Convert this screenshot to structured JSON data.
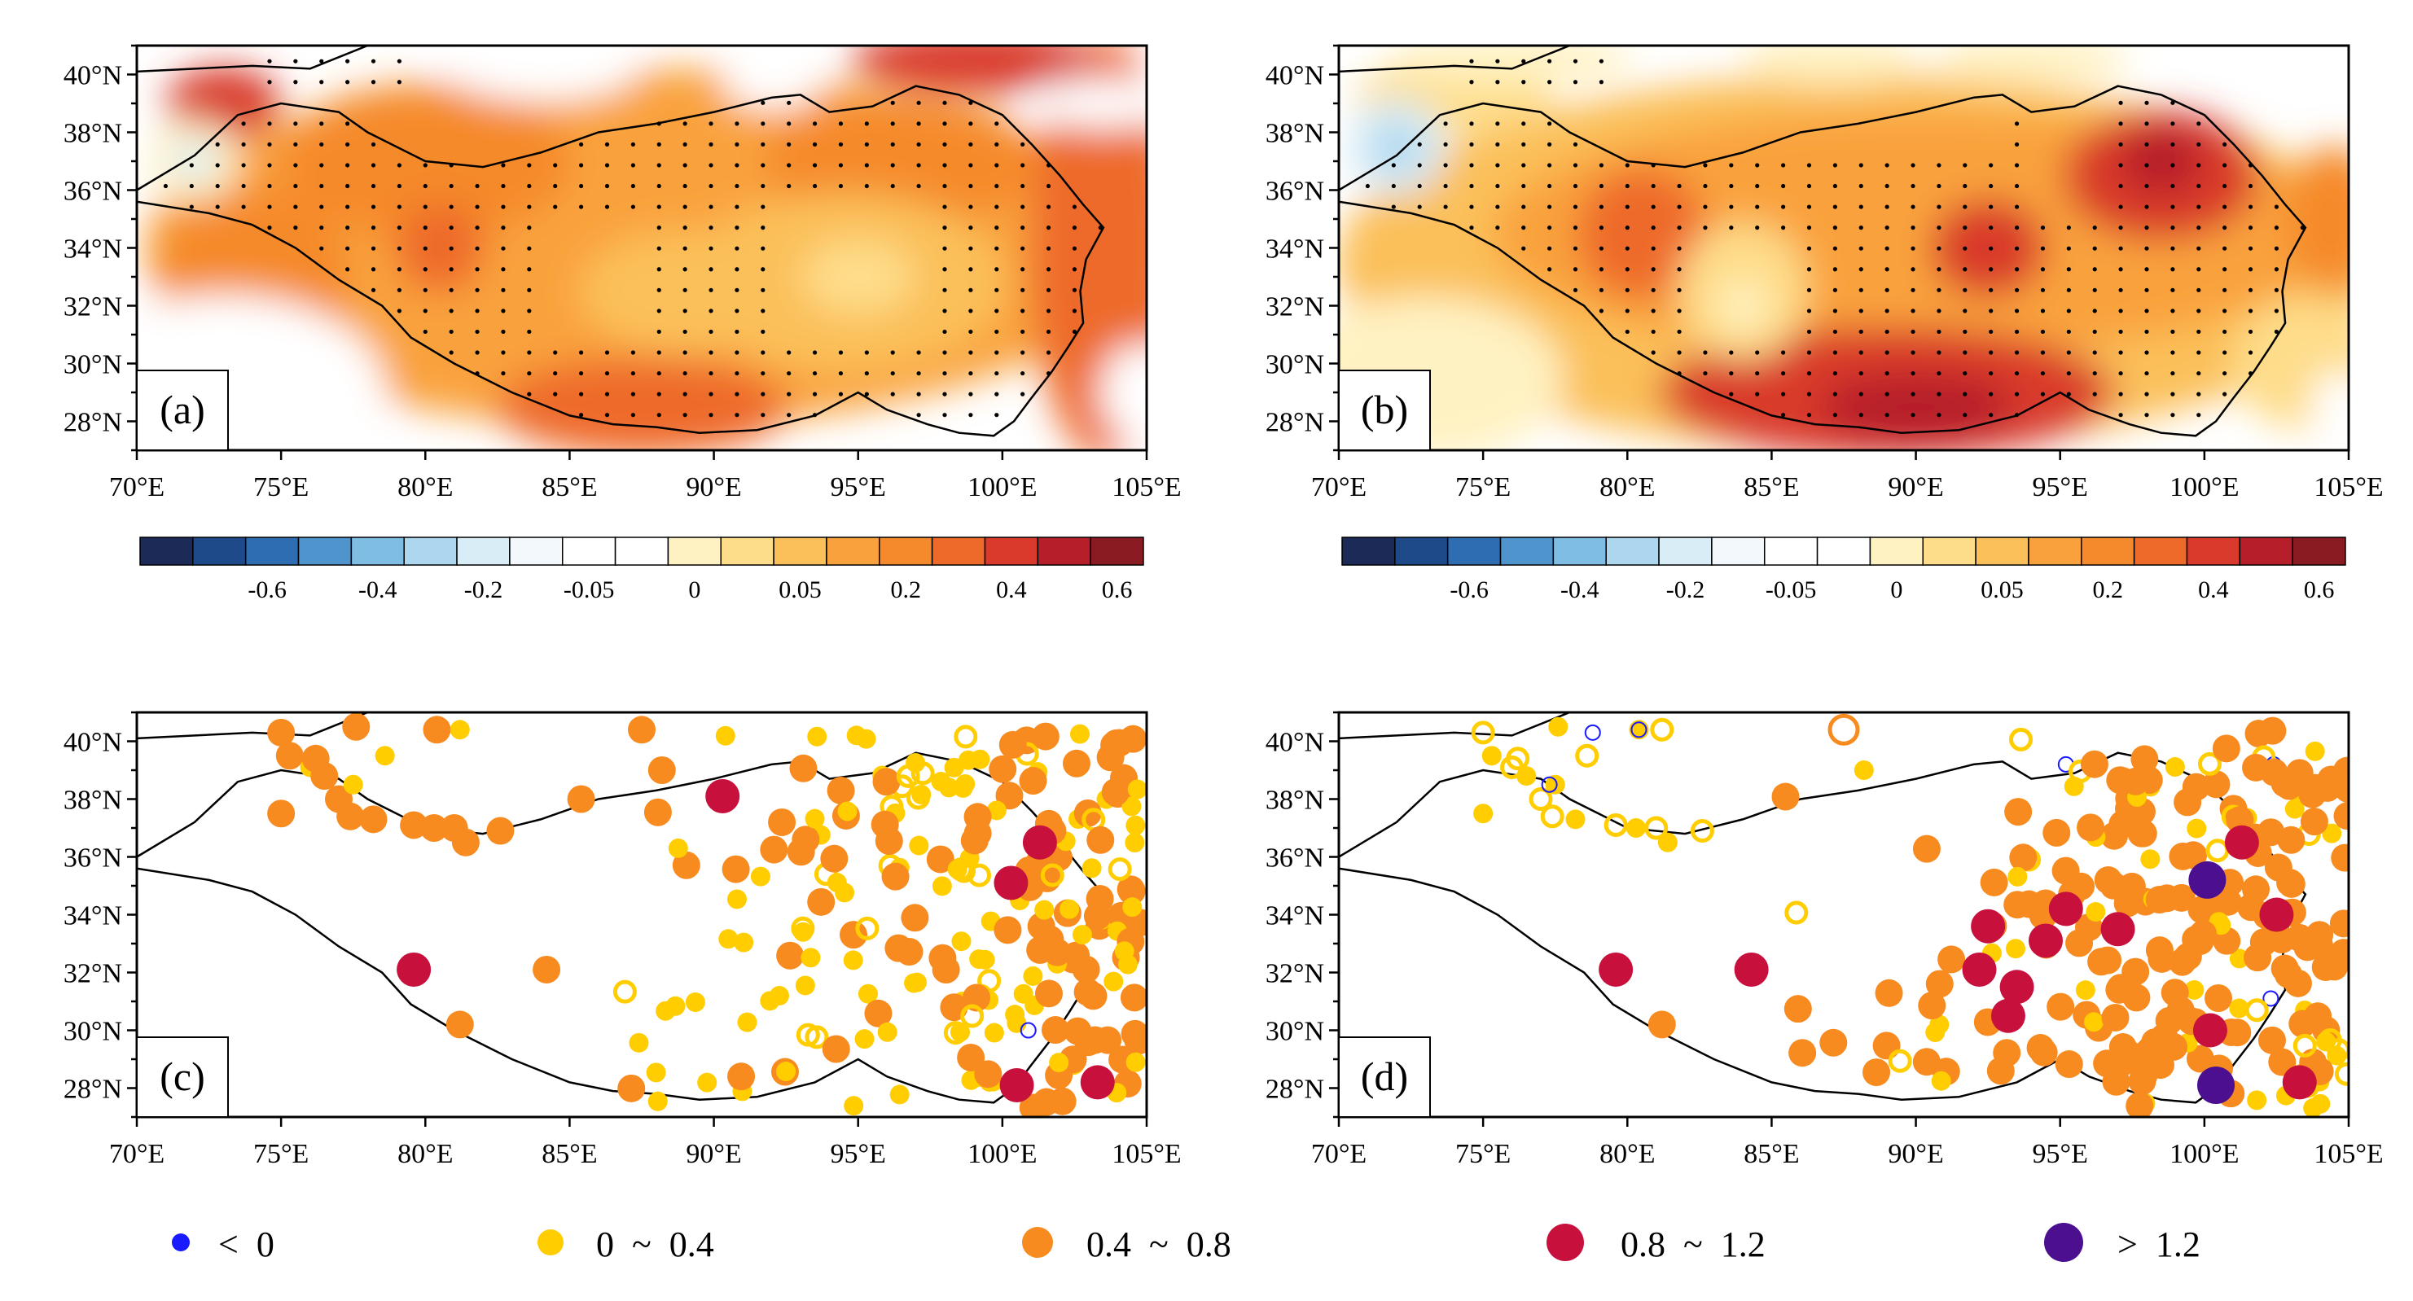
{
  "figure": {
    "lon_ticks": [
      "70°E",
      "75°E",
      "80°E",
      "85°E",
      "90°E",
      "95°E",
      "100°E",
      "105°E"
    ],
    "lat_ticks": [
      "28°N",
      "30°N",
      "32°N",
      "34°N",
      "36°N",
      "38°N",
      "40°N"
    ],
    "extent": {
      "lon": [
        70,
        105
      ],
      "lat": [
        27,
        41
      ]
    }
  },
  "panels": [
    {
      "id": "a",
      "label": "(a)",
      "kind": "contour"
    },
    {
      "id": "b",
      "label": "(b)",
      "kind": "contour"
    },
    {
      "id": "c",
      "label": "(c)",
      "kind": "stations"
    },
    {
      "id": "d",
      "label": "(d)",
      "kind": "stations"
    }
  ],
  "colorbar": {
    "tick_labels": [
      "-0.6",
      "-0.4",
      "-0.2",
      "-0.05",
      "0",
      "0.05",
      "0.2",
      "0.4",
      "0.6"
    ],
    "colors": [
      "#1b2a57",
      "#1e4a8a",
      "#2f6db3",
      "#4f94cd",
      "#7fbde4",
      "#acd7ef",
      "#d9edf7",
      "#f2f8fb",
      "#ffffff",
      "#ffffff",
      "#fff2c2",
      "#fedd8a",
      "#fbc05a",
      "#f9a23d",
      "#f58a2c",
      "#ee6a2b",
      "#d93a2b",
      "#b61e29",
      "#8a1b22"
    ]
  },
  "legend": {
    "items": [
      {
        "label": "<  0",
        "color": "#1a1aff",
        "size": "tiny"
      },
      {
        "label": "0  ~  0.4",
        "color": "#ffcd00",
        "size": "small"
      },
      {
        "label": "0.4  ~  0.8",
        "color": "#f78b1f",
        "size": "medium"
      },
      {
        "label": "0.8  ~  1.2",
        "color": "#c8103d",
        "size": "large"
      },
      {
        "label": ">  1.2",
        "color": "#4b0f8f",
        "size": "xlarge"
      }
    ]
  },
  "colors": {
    "outline": "#000000",
    "neg": "#1a1aff",
    "cls1": "#ffcd00",
    "cls2": "#f78b1f",
    "cls3": "#c8103d",
    "cls4": "#4b0f8f"
  }
}
